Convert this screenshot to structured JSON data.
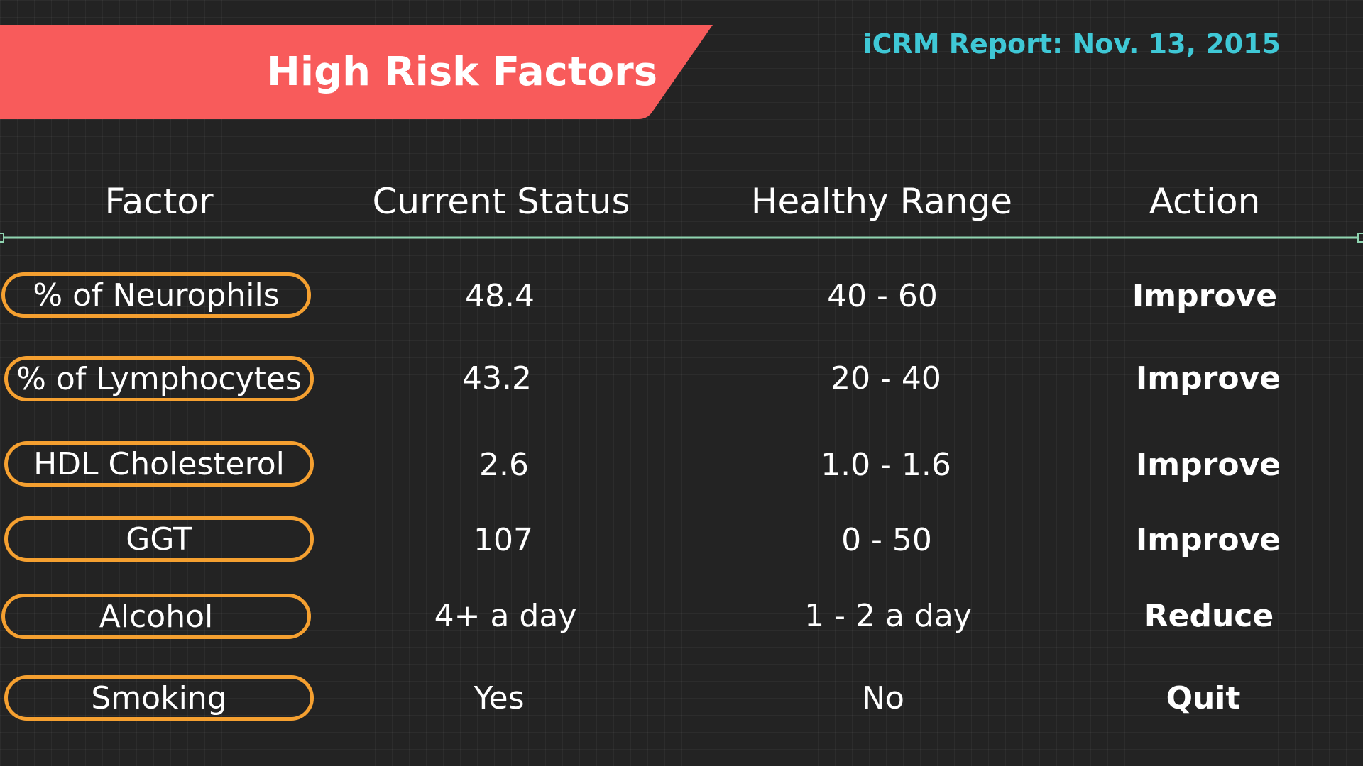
{
  "header": {
    "title": "High Risk Factors",
    "report_date": "iCRM Report: Nov. 13, 2015"
  },
  "colors": {
    "background": "#232323",
    "banner": "#f85b5b",
    "pill_border": "#f5a030",
    "date_text": "#3fc8d6",
    "divider": "#8fd4b0"
  },
  "table": {
    "columns": [
      "Factor",
      "Current Status",
      "Healthy Range",
      "Action"
    ],
    "rows": [
      {
        "factor": "% of Neurophils",
        "current": "48.4",
        "range": "40 - 60",
        "action": "Improve"
      },
      {
        "factor": "% of Lymphocytes",
        "current": "43.2",
        "range": "20 - 40",
        "action": "Improve"
      },
      {
        "factor": "HDL Cholesterol",
        "current": "2.6",
        "range": "1.0 - 1.6",
        "action": "Improve"
      },
      {
        "factor": "GGT",
        "current": "107",
        "range": "0 - 50",
        "action": "Improve"
      },
      {
        "factor": "Alcohol",
        "current": "4+ a day",
        "range": "1 - 2 a day",
        "action": "Reduce"
      },
      {
        "factor": "Smoking",
        "current": "Yes",
        "range": "No",
        "action": "Quit"
      }
    ]
  }
}
